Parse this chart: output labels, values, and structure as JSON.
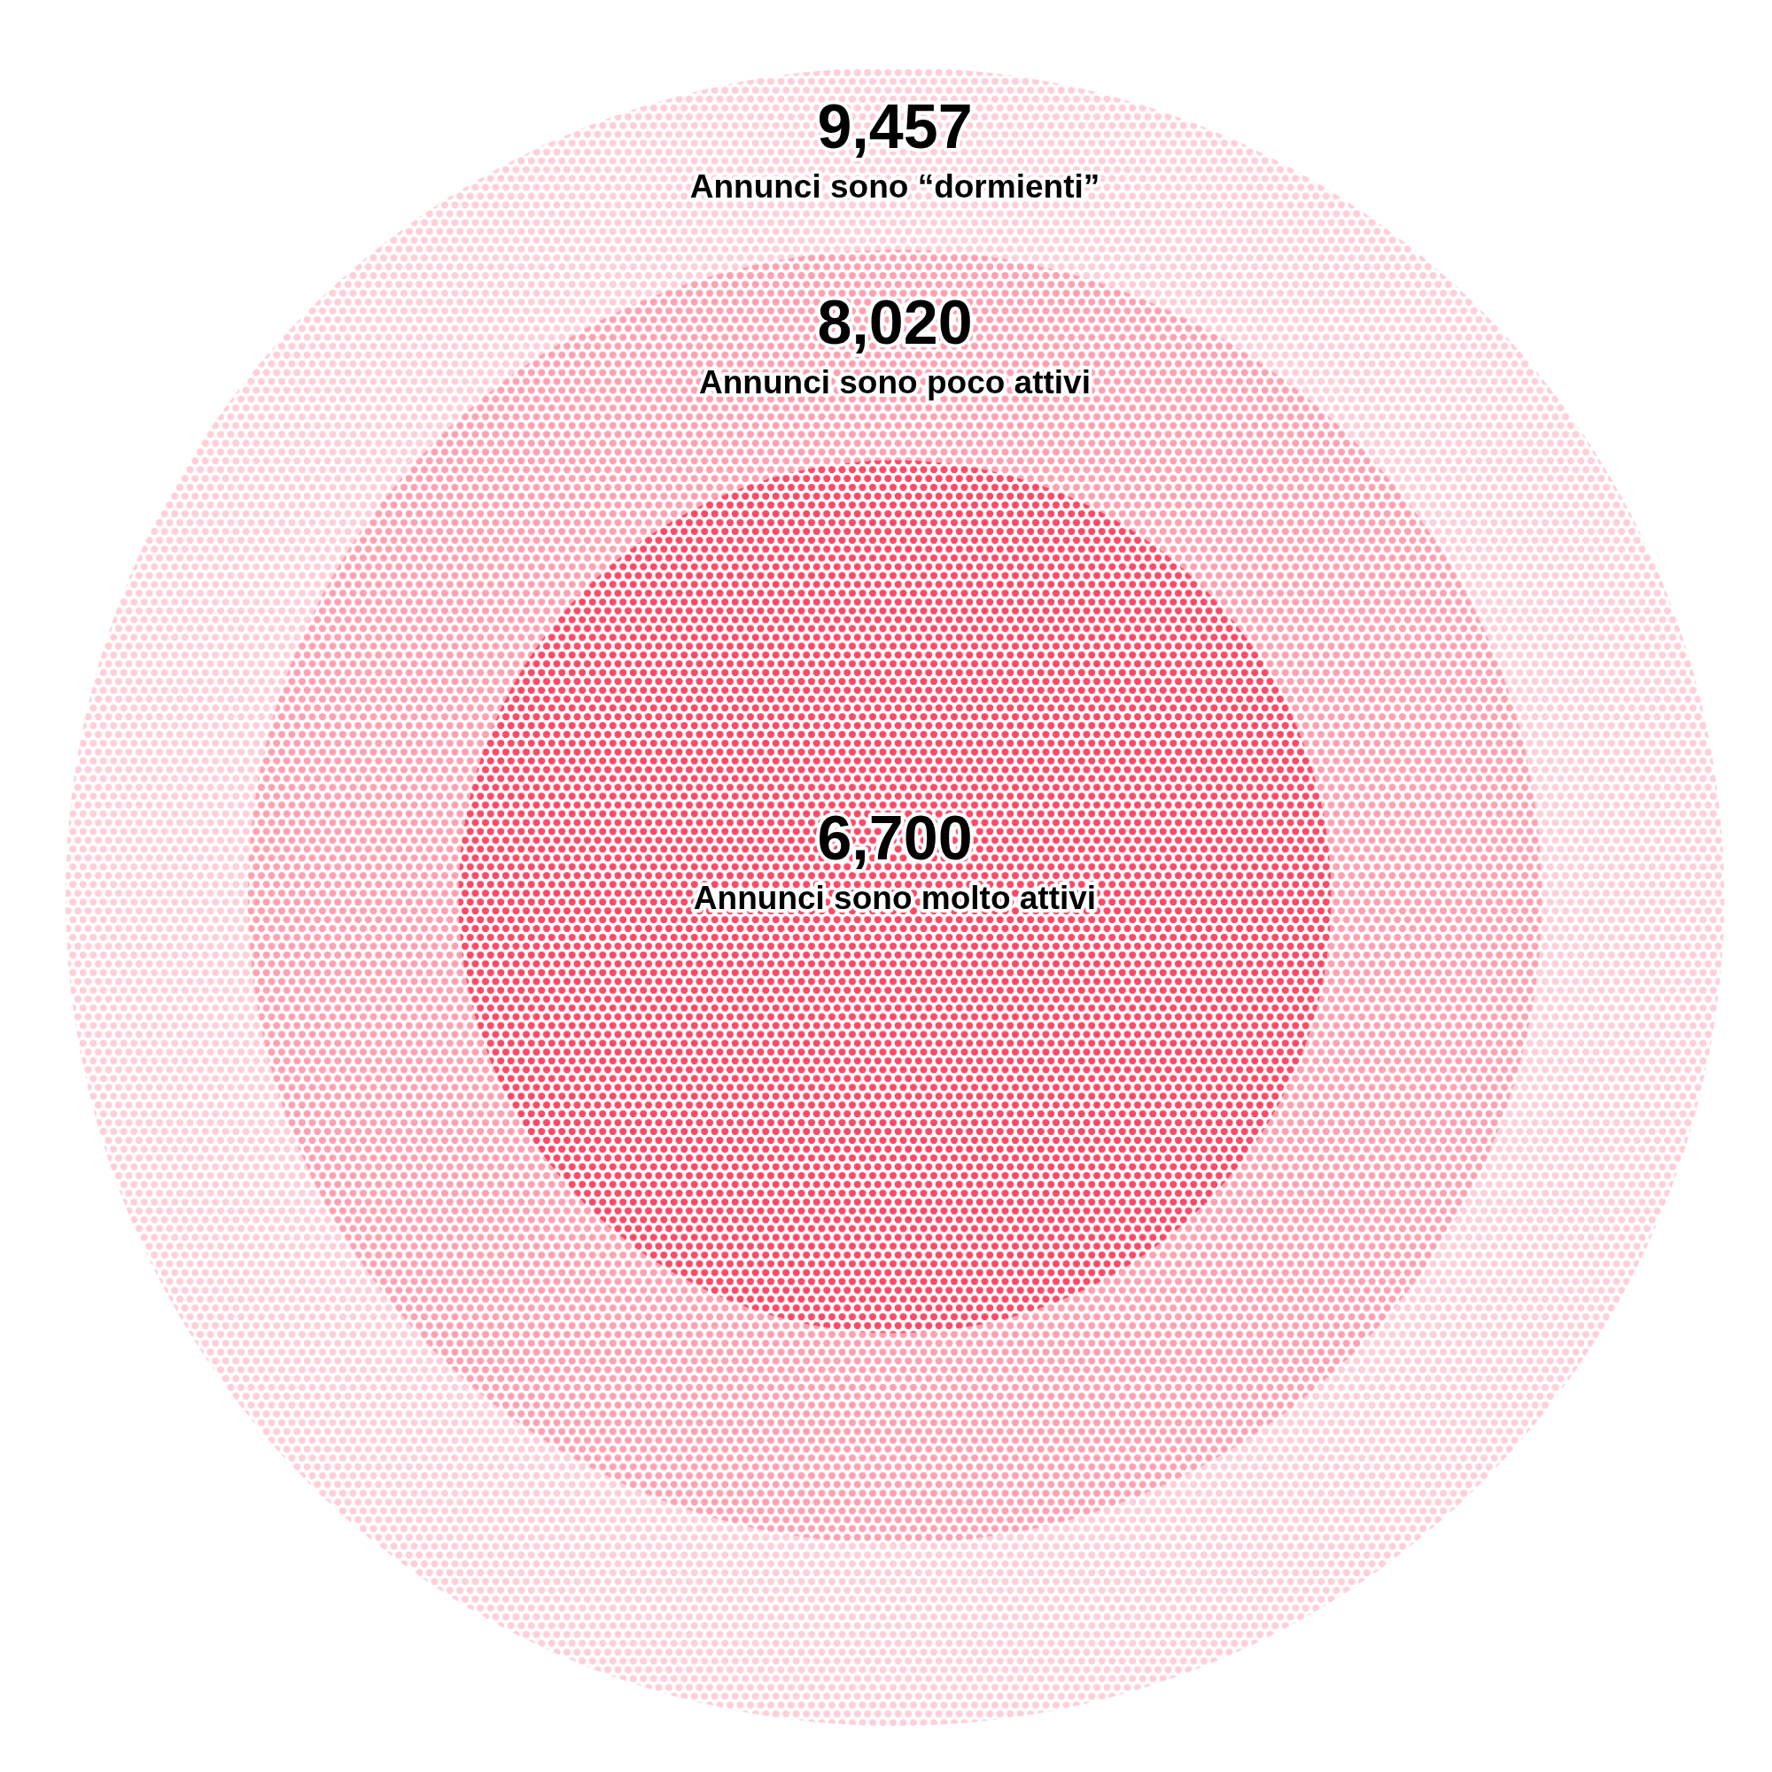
{
  "chart_data": {
    "type": "other",
    "categories": [
      "Annunci sono “dormienti”",
      "Annunci sono poco attivi",
      "Annunci sono molto attivi"
    ],
    "values": [
      9457,
      8020,
      6700
    ],
    "value_labels": [
      "9,457",
      "8,020",
      "6,700"
    ],
    "colors": [
      "#ffcfd9",
      "#ffa1b1",
      "#fb4a67"
    ]
  }
}
